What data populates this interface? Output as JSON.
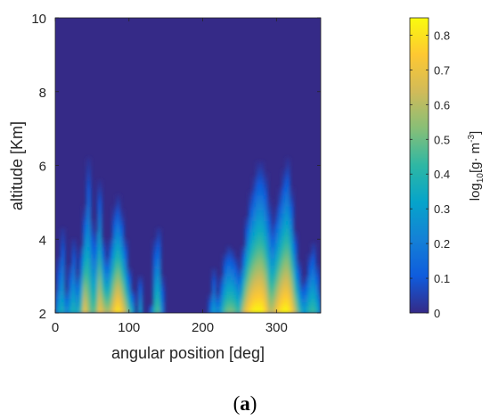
{
  "caption": {
    "open": "(",
    "letter": "a",
    "close": ")"
  },
  "chart_data": {
    "type": "heatmap",
    "xlabel": "angular position [deg]",
    "ylabel": "altitude [Km]",
    "colorbar_label_prefix": "log",
    "colorbar_label_sub": "10",
    "colorbar_label_body": "[g· m",
    "colorbar_label_sup": "-3",
    "colorbar_label_suffix": "]",
    "xlim": [
      0,
      360
    ],
    "ylim": [
      2,
      10
    ],
    "clim": [
      0,
      0.85
    ],
    "xticks": [
      0,
      100,
      200,
      300
    ],
    "yticks": [
      2,
      4,
      6,
      8,
      10
    ],
    "cticks": [
      0,
      0.1,
      0.2,
      0.3,
      0.4,
      0.5,
      0.6,
      0.7,
      0.8
    ],
    "colormap": "parula",
    "colormap_stops": [
      "#352a87",
      "#0f5cdd",
      "#1481d6",
      "#06a4ca",
      "#2eb7a4",
      "#87bf77",
      "#d1bb59",
      "#fec832",
      "#f9fb0e"
    ],
    "precip_columns": {
      "angle_deg": [
        0,
        5,
        10,
        15,
        20,
        25,
        30,
        35,
        40,
        45,
        50,
        55,
        60,
        65,
        70,
        75,
        80,
        85,
        90,
        95,
        100,
        105,
        110,
        115,
        120,
        125,
        130,
        135,
        140,
        145,
        150,
        155,
        160,
        165,
        170,
        175,
        180,
        185,
        190,
        195,
        200,
        205,
        210,
        215,
        220,
        225,
        230,
        235,
        240,
        245,
        250,
        255,
        260,
        265,
        270,
        275,
        280,
        285,
        290,
        295,
        300,
        305,
        310,
        315,
        320,
        325,
        330,
        335,
        340,
        345,
        350,
        355,
        360
      ],
      "top_altitude_km": [
        2.6,
        3.5,
        4.3,
        2.6,
        3.3,
        4.0,
        3.0,
        3.8,
        4.8,
        6.1,
        4.5,
        4.2,
        5.5,
        4.0,
        3.5,
        4.0,
        4.8,
        5.1,
        4.7,
        4.0,
        3.2,
        2.6,
        2.0,
        3.0,
        2.0,
        2.0,
        2.2,
        4.0,
        4.3,
        3.0,
        2.0,
        2.0,
        2.0,
        2.0,
        2.0,
        2.0,
        2.0,
        2.0,
        2.0,
        2.0,
        2.0,
        2.0,
        2.5,
        3.2,
        2.5,
        3.0,
        3.6,
        3.8,
        3.7,
        3.5,
        3.2,
        3.8,
        4.6,
        5.2,
        5.6,
        6.0,
        6.0,
        5.7,
        5.0,
        4.4,
        4.8,
        5.3,
        5.8,
        6.1,
        5.3,
        4.2,
        3.4,
        2.8,
        3.0,
        3.6,
        3.9,
        3.3,
        2.6
      ],
      "peak_value": [
        0.2,
        0.3,
        0.35,
        0.2,
        0.3,
        0.38,
        0.3,
        0.45,
        0.7,
        0.55,
        0.45,
        0.5,
        0.7,
        0.62,
        0.55,
        0.6,
        0.72,
        0.8,
        0.72,
        0.6,
        0.45,
        0.3,
        0.15,
        0.3,
        0.1,
        0.1,
        0.15,
        0.4,
        0.45,
        0.2,
        0.05,
        0.05,
        0.02,
        0.02,
        0.02,
        0.02,
        0.02,
        0.02,
        0.02,
        0.02,
        0.02,
        0.02,
        0.15,
        0.3,
        0.2,
        0.3,
        0.45,
        0.5,
        0.5,
        0.45,
        0.4,
        0.6,
        0.72,
        0.78,
        0.82,
        0.82,
        0.82,
        0.75,
        0.6,
        0.6,
        0.7,
        0.78,
        0.82,
        0.82,
        0.75,
        0.6,
        0.45,
        0.3,
        0.3,
        0.4,
        0.42,
        0.35,
        0.2
      ]
    }
  }
}
